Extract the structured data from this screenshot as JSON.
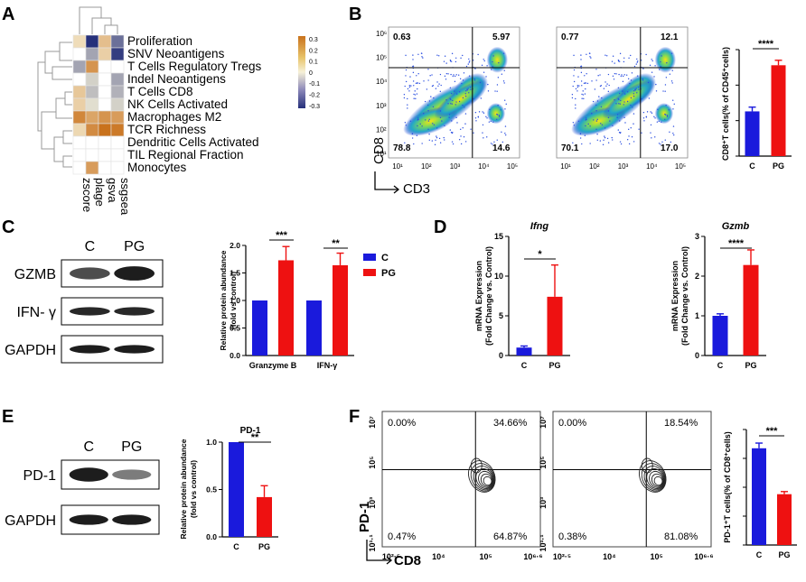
{
  "panels": {
    "A": {
      "letter": "A",
      "rows": [
        "Proliferation",
        "SNV Neoantigens",
        "T Cells Regulatory Tregs",
        "Indel Neoantigens",
        "T Cells CD8",
        "NK Cells Activated",
        "Macrophages M2",
        "TCR Richness",
        "Dendritic Cells Activated",
        "TIL Regional Fraction",
        "Monocytes"
      ],
      "cols": [
        "zscore",
        "plage",
        "gsva",
        "ssgsea"
      ],
      "matrix": [
        [
          0.05,
          -0.3,
          0.12,
          -0.2
        ],
        [
          0.0,
          -0.12,
          0.08,
          -0.28
        ],
        [
          -0.12,
          0.22,
          0.0,
          0.0
        ],
        [
          0.0,
          -0.05,
          0.0,
          -0.12
        ],
        [
          0.1,
          -0.08,
          0.0,
          -0.1
        ],
        [
          0.08,
          -0.03,
          0.0,
          -0.05
        ],
        [
          0.25,
          0.18,
          0.22,
          0.2
        ],
        [
          0.06,
          0.24,
          0.3,
          0.28
        ],
        [
          0.0,
          0.0,
          0.0,
          0.0
        ],
        [
          0.0,
          0.0,
          0.0,
          0.0
        ],
        [
          0.0,
          0.2,
          0.0,
          0.0
        ]
      ],
      "legend_ticks": [
        "0.3",
        "0.2",
        "0.1",
        "0",
        "-0.1",
        "-0.2",
        "-0.3"
      ],
      "colors": {
        "high": "#c9721c",
        "mid": "#f6f1d8",
        "low": "#26307a"
      }
    },
    "B": {
      "letter": "B",
      "flow": [
        {
          "q": [
            "0.63",
            "5.97",
            "78.8",
            "14.6"
          ]
        },
        {
          "q": [
            "0.77",
            "12.1",
            "70.1",
            "17.0"
          ]
        }
      ],
      "y_ticks": [
        "10⁶",
        "10⁵",
        "10⁴",
        "10³",
        "10²",
        "10¹"
      ],
      "x_ticks": [
        "10¹",
        "10²",
        "10³",
        "10⁴",
        "10⁵"
      ],
      "y_axis": "CD8",
      "x_axis": "CD3",
      "chart_data": {
        "type": "bar",
        "categories": [
          "C",
          "PG"
        ],
        "values": [
          6.3,
          12.8
        ],
        "errors": [
          0.6,
          0.7
        ],
        "ylim": [
          0,
          15
        ],
        "yticks": [
          "0",
          "5",
          "10",
          "15"
        ],
        "ylabel": "CD8⁺T cells(% of CD45⁺cells)",
        "significance": "****"
      }
    },
    "C": {
      "letter": "C",
      "lanes": [
        "C",
        "PG"
      ],
      "blots": [
        "GZMB",
        "IFN- γ",
        "GAPDH"
      ],
      "chart_data": {
        "type": "bar",
        "categories": [
          "Granzyme B",
          "IFN-γ"
        ],
        "series": [
          {
            "name": "C",
            "values": [
              1.0,
              1.0
            ],
            "errors": [
              0,
              0
            ]
          },
          {
            "name": "PG",
            "values": [
              1.73,
              1.64
            ],
            "errors": [
              0.25,
              0.22
            ]
          }
        ],
        "ylim": [
          0,
          2.0
        ],
        "yticks": [
          "0.0",
          "0.5",
          "1.0",
          "1.5",
          "2.0"
        ],
        "ylabel_line1": "Relative protein abundance",
        "ylabel_line2": "(fold vs control)",
        "significance": [
          "***",
          "**"
        ]
      },
      "legend": [
        "C",
        "PG"
      ]
    },
    "D": {
      "letter": "D",
      "charts": [
        {
          "type": "bar",
          "title": "Ifng",
          "categories": [
            "C",
            "PG"
          ],
          "values": [
            1.0,
            7.4
          ],
          "errors": [
            0.2,
            4.0
          ],
          "ylim": [
            0,
            15
          ],
          "yticks": [
            "0",
            "5",
            "10",
            "15"
          ],
          "significance": "*"
        },
        {
          "type": "bar",
          "title": "Gzmb",
          "categories": [
            "C",
            "PG"
          ],
          "values": [
            1.0,
            2.28
          ],
          "errors": [
            0.05,
            0.38
          ],
          "ylim": [
            0,
            3
          ],
          "yticks": [
            "0",
            "1",
            "2",
            "3"
          ],
          "significance": "****"
        }
      ],
      "ylabel_line1": "mRNA Expression",
      "ylabel_line2": "(Fold Change vs. Control)"
    },
    "E": {
      "letter": "E",
      "lanes": [
        "C",
        "PG"
      ],
      "blots": [
        "PD-1",
        "GAPDH"
      ],
      "chart_data": {
        "type": "bar",
        "title": "PD-1",
        "categories": [
          "C",
          "PG"
        ],
        "values": [
          1.0,
          0.42
        ],
        "errors": [
          0,
          0.12
        ],
        "ylim": [
          0,
          1.0
        ],
        "yticks": [
          "0.0",
          "0.5",
          "1.0"
        ],
        "ylabel_line1": "Relative protein abundance",
        "ylabel_line2": "(fold vs control)",
        "significance": "**"
      }
    },
    "F": {
      "letter": "F",
      "flow": [
        {
          "q": [
            "0.00%",
            "34.66%",
            "0.47%",
            "64.87%"
          ]
        },
        {
          "q": [
            "0.00%",
            "18.54%",
            "0.38%",
            "81.08%"
          ]
        }
      ],
      "y_ticks": [
        "10⁷",
        "10⁵",
        "10³",
        "10¹·¹"
      ],
      "x_ticks": [
        "10²·⁵",
        "10⁴",
        "10⁵",
        "10⁶·⁶"
      ],
      "y_axis": "PD-1",
      "x_axis": "CD8",
      "chart_data": {
        "type": "bar",
        "categories": [
          "C",
          "PG"
        ],
        "values": [
          33.5,
          17.6
        ],
        "errors": [
          1.8,
          0.9
        ],
        "ylim": [
          0,
          40
        ],
        "yticks": [
          "0",
          "10",
          "20",
          "30",
          "40"
        ],
        "ylabel": "PD-1⁺T cells(% of CD8⁺cells)",
        "significance": "***"
      }
    }
  },
  "colors": {
    "control": "#1a1adc",
    "pg": "#ee1111"
  }
}
